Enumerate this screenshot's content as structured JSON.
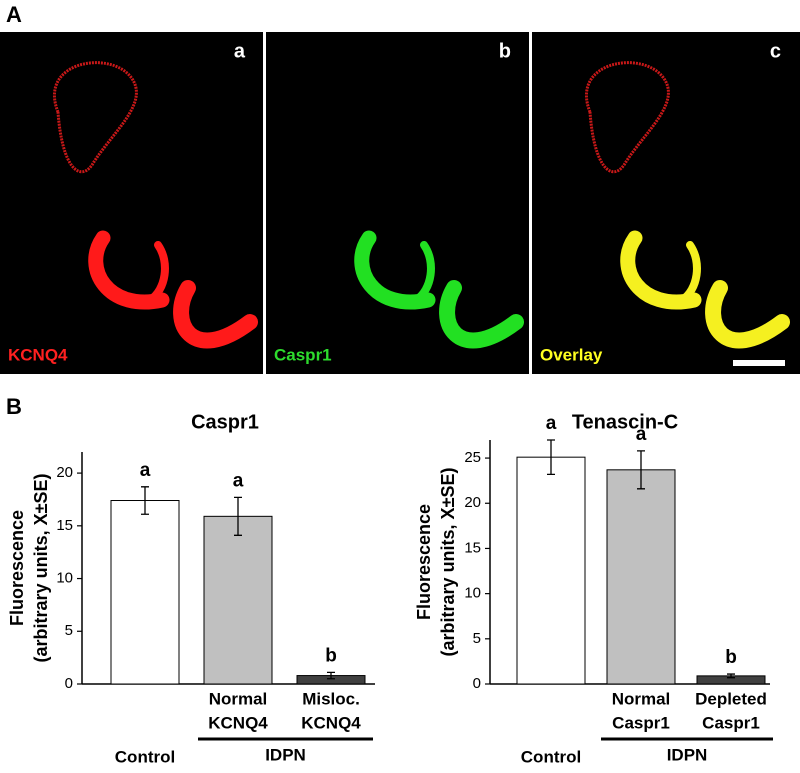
{
  "panel_a": {
    "label": "A",
    "images": [
      {
        "letter": "a",
        "caption": "KCNQ4"
      },
      {
        "letter": "b",
        "caption": "Caspr1"
      },
      {
        "letter": "c",
        "caption": "Overlay"
      }
    ]
  },
  "panel_b": {
    "label": "B"
  },
  "chart_data": [
    {
      "type": "bar",
      "title": "Caspr1",
      "y_label": [
        "Fluorescence",
        "(arbitrary units, X±SE)"
      ],
      "categories": [
        [
          "Control"
        ],
        [
          "Normal",
          "KCNQ4"
        ],
        [
          "Misloc.",
          "KCNQ4"
        ]
      ],
      "values": [
        17.4,
        15.9,
        0.8
      ],
      "errors": [
        1.3,
        1.8,
        0.3
      ],
      "letters": [
        "a",
        "a",
        "b"
      ],
      "colors": [
        "#ffffff",
        "#c0c0c0",
        "#404040"
      ],
      "group_label": "IDPN",
      "ylim": [
        0,
        22
      ],
      "yticks": [
        0,
        5,
        10,
        15,
        20
      ]
    },
    {
      "type": "bar",
      "title": "Tenascin-C",
      "y_label": [
        "Fluorescence",
        "(arbitrary units, X±SE)"
      ],
      "categories": [
        [
          "Control"
        ],
        [
          "Normal",
          "Caspr1"
        ],
        [
          "Depleted",
          "Caspr1"
        ]
      ],
      "values": [
        25.1,
        23.7,
        0.9
      ],
      "errors": [
        1.9,
        2.1,
        0.2
      ],
      "letters": [
        "a",
        "a",
        "b"
      ],
      "colors": [
        "#ffffff",
        "#c0c0c0",
        "#404040"
      ],
      "group_label": "IDPN",
      "ylim": [
        0,
        27
      ],
      "yticks": [
        0,
        5,
        10,
        15,
        20,
        25
      ]
    }
  ]
}
